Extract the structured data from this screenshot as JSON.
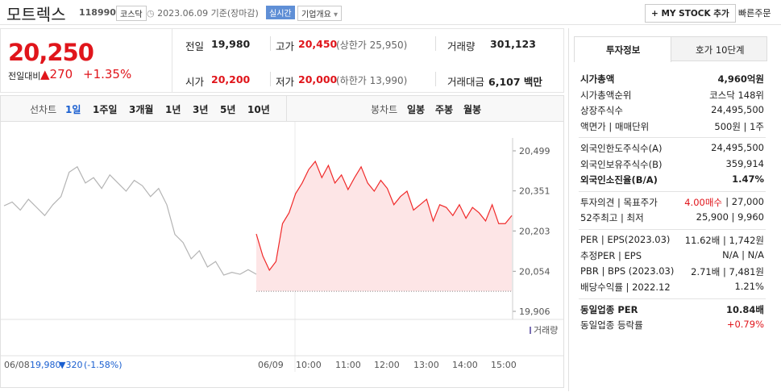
{
  "header": {
    "name": "모트렉스",
    "code": "118990",
    "market": "코스닥",
    "date": "2023.06.09 기준(장마감)",
    "realtime": "실시간",
    "overview": "기업개요",
    "mystock": "+ MY STOCK 추가",
    "quick_order": "빠른주문"
  },
  "price": {
    "current": "20,250",
    "change_label": "전일대비",
    "change": "▲270",
    "change_pct": "+1.35%"
  },
  "summary": [
    {
      "label": "전일",
      "value": "19,980"
    },
    {
      "label": "고가",
      "value": "20,450",
      "extra": "(상한가 25,950)"
    },
    {
      "label": "거래량",
      "value": "301,123"
    },
    {
      "label": "시가",
      "value": "20,200"
    },
    {
      "label": "저가",
      "value": "20,000",
      "extra": "(하한가 13,990)"
    },
    {
      "label": "거래대금",
      "value": "6,107 백만"
    }
  ],
  "tabs": {
    "line_chart": "선차트",
    "line_periods": [
      "1일",
      "1주일",
      "3개월",
      "1년",
      "3년",
      "5년",
      "10년"
    ],
    "candle_chart": "봉차트",
    "candle_periods": [
      "일봉",
      "주봉",
      "월봉"
    ]
  },
  "chart_data": {
    "type": "line",
    "series": [
      {
        "name": "06/08",
        "color": "#b4b4b4",
        "values": [
          20296,
          20310,
          20280,
          20320,
          20290,
          20260,
          20300,
          20330,
          20420,
          20440,
          20380,
          20400,
          20360,
          20410,
          20380,
          20350,
          20390,
          20370,
          20330,
          20360,
          20300,
          20190,
          20160,
          20100,
          20130,
          20070,
          20090,
          20040,
          20050,
          20043,
          20060,
          20043
        ]
      },
      {
        "name": "06/09",
        "color": "#f02a2a",
        "values": [
          20192,
          20110,
          20058,
          20090,
          20230,
          20270,
          20341,
          20380,
          20430,
          20460,
          20400,
          20445,
          20380,
          20410,
          20356,
          20400,
          20440,
          20380,
          20350,
          20390,
          20360,
          20300,
          20330,
          20350,
          20280,
          20300,
          20320,
          20240,
          20300,
          20290,
          20260,
          20300,
          20250,
          20290,
          20270,
          20240,
          20300,
          20230,
          20230,
          20260
        ]
      }
    ],
    "prev_close_line": 19980,
    "ylim": [
      19906,
      20499
    ],
    "yticks": [
      {
        "value": 19906,
        "label": "19,906"
      },
      {
        "value": 20054,
        "label": "20,054"
      },
      {
        "value": 20203,
        "label": "20,203"
      },
      {
        "value": 20351,
        "label": "20,351"
      },
      {
        "value": 20499,
        "label": "20,499"
      }
    ],
    "x_labels": [
      "06/09",
      "10:00",
      "11:00",
      "12:00",
      "13:00",
      "14:00",
      "15:00"
    ],
    "volume_label": "거래량",
    "footer": {
      "date": "06/08",
      "close": "19,980",
      "change": "▼320",
      "change_pct": "(-1.58%)"
    }
  },
  "side": {
    "tabs": [
      "투자정보",
      "호가 10단계"
    ],
    "sections": [
      [
        {
          "label": "시가총액",
          "value": "4,960억원",
          "emphasis": true
        },
        {
          "label": "시가총액순위",
          "value": "코스닥 148위"
        },
        {
          "label": "상장주식수",
          "value": "24,495,500"
        },
        {
          "label": "액면가 | 매매단위",
          "value": "500원 | 1주"
        }
      ],
      [
        {
          "label": "외국인한도주식수(A)",
          "value": "24,495,500"
        },
        {
          "label": "외국인보유주식수(B)",
          "value": "359,914"
        },
        {
          "label": "외국인소진율(B/A)",
          "value": "1.47%",
          "emphasis": true
        }
      ],
      [
        {
          "label": "투자의견 | 목표주가",
          "value": "4.00매수",
          "value2": "| 27,000"
        },
        {
          "label": "52주최고 | 최저",
          "value": "25,900 | 9,960"
        }
      ],
      [
        {
          "label": "PER | EPS(2023.03)",
          "value": "11.62배 | 1,742원"
        },
        {
          "label": "추정PER | EPS",
          "value": "N/A | N/A"
        },
        {
          "label": "PBR | BPS (2023.03)",
          "value": "2.71배 | 7,481원"
        },
        {
          "label": "배당수익률 | 2022.12",
          "value": "1.21%"
        }
      ],
      [
        {
          "label": "동일업종 PER",
          "value": "10.84배",
          "emphasis": true
        },
        {
          "label": "동일업종 등락률",
          "value": "+0.79%",
          "up": true
        }
      ]
    ]
  }
}
